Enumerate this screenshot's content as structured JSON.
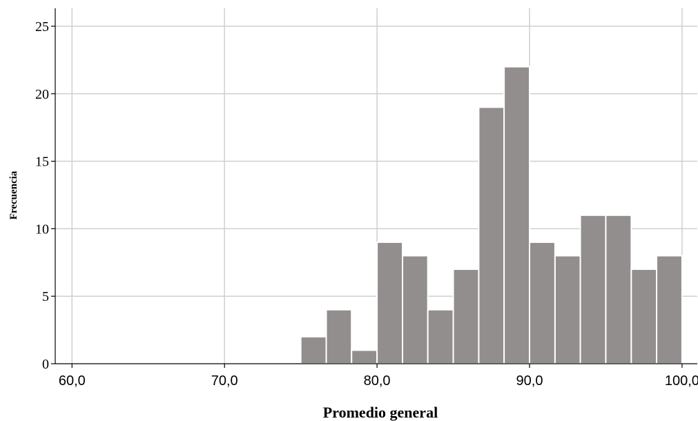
{
  "chart_data": {
    "type": "bar",
    "subtype": "histogram",
    "xlabel": "Promedio general",
    "ylabel": "Frecuencia",
    "xlim": [
      58.9,
      101.0
    ],
    "ylim": [
      0,
      25
    ],
    "x_ticks": [
      60,
      70,
      80,
      90,
      100
    ],
    "x_tick_labels": [
      "60,0",
      "70,0",
      "80,0",
      "90,0",
      "100,0"
    ],
    "y_ticks": [
      0,
      5,
      10,
      15,
      20,
      25
    ],
    "y_tick_labels": [
      "0",
      "5",
      "10",
      "15",
      "20",
      "25"
    ],
    "grid": true,
    "bar_color": "#928e8d",
    "bin_width": 1.667,
    "bins": [
      {
        "start": 75.0,
        "end": 76.67,
        "count": 2
      },
      {
        "start": 76.67,
        "end": 78.33,
        "count": 4
      },
      {
        "start": 78.33,
        "end": 80.0,
        "count": 1
      },
      {
        "start": 80.0,
        "end": 81.67,
        "count": 9
      },
      {
        "start": 81.67,
        "end": 83.33,
        "count": 8
      },
      {
        "start": 83.33,
        "end": 85.0,
        "count": 4
      },
      {
        "start": 85.0,
        "end": 86.67,
        "count": 7
      },
      {
        "start": 86.67,
        "end": 88.33,
        "count": 19
      },
      {
        "start": 88.33,
        "end": 90.0,
        "count": 22
      },
      {
        "start": 90.0,
        "end": 91.67,
        "count": 9
      },
      {
        "start": 91.67,
        "end": 93.33,
        "count": 8
      },
      {
        "start": 93.33,
        "end": 95.0,
        "count": 11
      },
      {
        "start": 95.0,
        "end": 96.67,
        "count": 11
      },
      {
        "start": 96.67,
        "end": 98.33,
        "count": 7
      },
      {
        "start": 98.33,
        "end": 100.0,
        "count": 8
      }
    ]
  }
}
